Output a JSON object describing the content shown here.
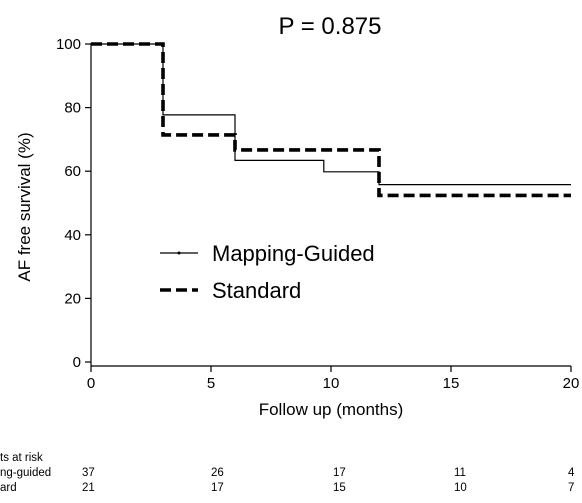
{
  "chart_data": {
    "type": "line",
    "title": "P = 0.875",
    "xlabel": "Follow up (months)",
    "ylabel": "AF free survival (%)",
    "xlim": [
      0,
      20
    ],
    "ylim": [
      0,
      100
    ],
    "xticks": [
      0,
      5,
      10,
      15,
      20
    ],
    "yticks": [
      0,
      20,
      40,
      60,
      80,
      100
    ],
    "step": true,
    "grid": false,
    "legend_position": "center-left",
    "series": [
      {
        "name": "Mapping-Guided",
        "style": "solid-thin",
        "color": "#000000",
        "points": [
          [
            0,
            100
          ],
          [
            3,
            100
          ],
          [
            3,
            77.7
          ],
          [
            6,
            77.7
          ],
          [
            6,
            63.4
          ],
          [
            9.7,
            63.4
          ],
          [
            9.7,
            59.8
          ],
          [
            12,
            59.8
          ],
          [
            12,
            55.8
          ],
          [
            20,
            55.8
          ]
        ]
      },
      {
        "name": "Standard",
        "style": "dashed-thick",
        "color": "#000000",
        "points": [
          [
            0,
            100
          ],
          [
            3,
            100
          ],
          [
            3,
            71.4
          ],
          [
            6,
            71.4
          ],
          [
            6,
            66.7
          ],
          [
            12,
            66.7
          ],
          [
            12,
            52.4
          ],
          [
            20,
            52.4
          ]
        ]
      }
    ],
    "risk_table": {
      "heading": "ts at risk",
      "times": [
        0,
        5,
        10,
        15,
        20
      ],
      "rows": [
        {
          "label": "ng-guided",
          "counts": [
            "37",
            "26",
            "17",
            "11",
            "4"
          ]
        },
        {
          "label": "ard",
          "counts": [
            "21",
            "17",
            "15",
            "10",
            "7"
          ]
        }
      ]
    }
  }
}
